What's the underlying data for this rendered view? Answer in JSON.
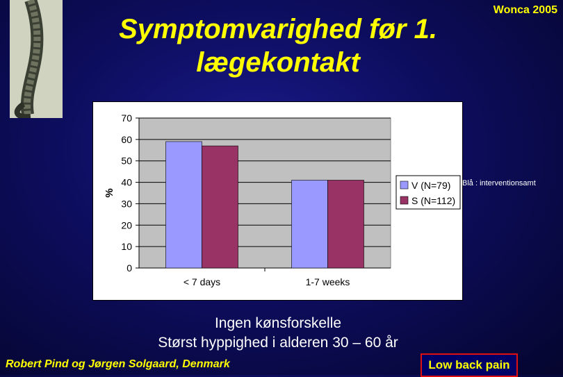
{
  "slide": {
    "title": "Symptomvarighed før 1.\nlægekontakt",
    "conference": "Wonca 2005",
    "side_note": "Blå : interventionsamt",
    "line1": "Ingen kønsforskelle",
    "line2": "Størst  hyppighed i alderen  30 – 60 år",
    "author": "Robert  Pind og Jørgen Solgaard, Denmark",
    "badge": "Low back pain"
  },
  "chart_data": {
    "type": "bar",
    "categories": [
      "< 7 days",
      "1-7 weeks"
    ],
    "series": [
      {
        "name": "V (N=79)",
        "values": [
          59,
          41
        ],
        "color": "#9999ff"
      },
      {
        "name": "S (N=112)",
        "values": [
          57,
          41
        ],
        "color": "#993366"
      }
    ],
    "ylabel": "%",
    "xlabel": "",
    "ylim": [
      0,
      70
    ],
    "yticks": [
      0,
      10,
      20,
      30,
      40,
      50,
      60,
      70
    ],
    "grid": true,
    "plot_background": "#c0c0c0",
    "legend": "right"
  }
}
